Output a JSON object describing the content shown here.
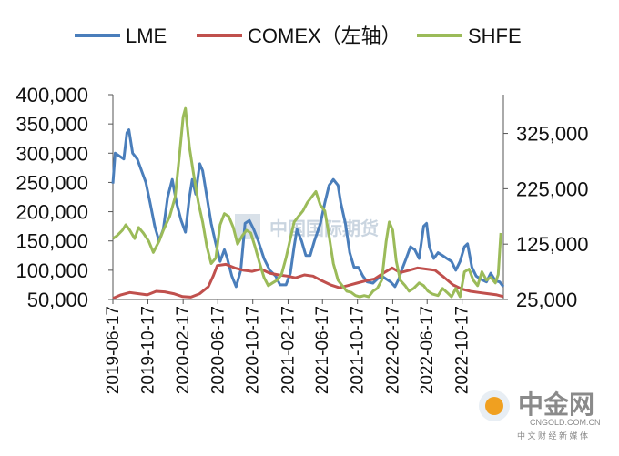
{
  "chart_data": {
    "type": "line",
    "title": "",
    "xlabel": "",
    "ylabel": "",
    "legend_position": "top",
    "grid": false,
    "left_axis": {
      "ticks": [
        50000,
        100000,
        150000,
        200000,
        250000,
        300000,
        350000,
        400000
      ],
      "tick_labels": [
        "50,000",
        "100,000",
        "150,000",
        "200,000",
        "250,000",
        "300,000",
        "350,000",
        "400,000"
      ],
      "ylim": [
        50000,
        400000
      ]
    },
    "right_axis": {
      "ticks": [
        25000,
        125000,
        225000,
        325000
      ],
      "tick_labels": [
        "25,000",
        "125,000",
        "225,000",
        "325,000"
      ],
      "ylim": [
        25000,
        395000
      ]
    },
    "x_tick_labels": [
      "2019-06-17",
      "2019-10-17",
      "2020-02-17",
      "2020-06-17",
      "2020-10-17",
      "2021-02-17",
      "2021-06-17",
      "2021-10-17",
      "2022-02-17",
      "2022-06-17",
      "2022-10-17"
    ],
    "x_range": [
      "2019-06-17",
      "2023-03-10"
    ],
    "series": [
      {
        "name": "LME",
        "axis": "left",
        "color": "#4a7ebb",
        "points": [
          [
            "2019-06-17",
            248000
          ],
          [
            "2019-06-25",
            300000
          ],
          [
            "2019-07-10",
            295000
          ],
          [
            "2019-07-25",
            290000
          ],
          [
            "2019-08-05",
            335000
          ],
          [
            "2019-08-12",
            340000
          ],
          [
            "2019-08-25",
            300000
          ],
          [
            "2019-09-10",
            290000
          ],
          [
            "2019-09-25",
            270000
          ],
          [
            "2019-10-10",
            250000
          ],
          [
            "2019-10-25",
            215000
          ],
          [
            "2019-11-10",
            175000
          ],
          [
            "2019-11-25",
            150000
          ],
          [
            "2019-12-10",
            170000
          ],
          [
            "2019-12-25",
            225000
          ],
          [
            "2020-01-10",
            255000
          ],
          [
            "2020-01-25",
            215000
          ],
          [
            "2020-02-10",
            185000
          ],
          [
            "2020-02-25",
            165000
          ],
          [
            "2020-03-10",
            225000
          ],
          [
            "2020-03-20",
            255000
          ],
          [
            "2020-04-01",
            230000
          ],
          [
            "2020-04-15",
            282000
          ],
          [
            "2020-04-25",
            270000
          ],
          [
            "2020-05-10",
            225000
          ],
          [
            "2020-05-25",
            180000
          ],
          [
            "2020-06-10",
            145000
          ],
          [
            "2020-06-25",
            115000
          ],
          [
            "2020-07-10",
            135000
          ],
          [
            "2020-07-20",
            120000
          ],
          [
            "2020-08-05",
            90000
          ],
          [
            "2020-08-20",
            72000
          ],
          [
            "2020-09-05",
            100000
          ],
          [
            "2020-09-20",
            180000
          ],
          [
            "2020-10-05",
            185000
          ],
          [
            "2020-10-20",
            170000
          ],
          [
            "2020-11-05",
            150000
          ],
          [
            "2020-11-25",
            120000
          ],
          [
            "2020-12-15",
            100000
          ],
          [
            "2021-01-05",
            90000
          ],
          [
            "2021-01-20",
            75000
          ],
          [
            "2021-02-10",
            75000
          ],
          [
            "2021-02-25",
            95000
          ],
          [
            "2021-03-10",
            140000
          ],
          [
            "2021-03-20",
            170000
          ],
          [
            "2021-04-05",
            150000
          ],
          [
            "2021-04-20",
            125000
          ],
          [
            "2021-05-05",
            125000
          ],
          [
            "2021-05-20",
            150000
          ],
          [
            "2021-06-10",
            180000
          ],
          [
            "2021-06-25",
            215000
          ],
          [
            "2021-07-10",
            245000
          ],
          [
            "2021-07-25",
            255000
          ],
          [
            "2021-08-10",
            245000
          ],
          [
            "2021-08-20",
            215000
          ],
          [
            "2021-09-05",
            180000
          ],
          [
            "2021-09-20",
            130000
          ],
          [
            "2021-10-05",
            105000
          ],
          [
            "2021-10-20",
            105000
          ],
          [
            "2021-11-05",
            90000
          ],
          [
            "2021-11-20",
            80000
          ],
          [
            "2021-12-10",
            78000
          ],
          [
            "2021-12-25",
            85000
          ],
          [
            "2022-01-10",
            90000
          ],
          [
            "2022-01-25",
            85000
          ],
          [
            "2022-02-10",
            80000
          ],
          [
            "2022-02-25",
            72000
          ],
          [
            "2022-03-10",
            85000
          ],
          [
            "2022-03-20",
            100000
          ],
          [
            "2022-04-05",
            120000
          ],
          [
            "2022-04-20",
            140000
          ],
          [
            "2022-05-05",
            135000
          ],
          [
            "2022-05-20",
            120000
          ],
          [
            "2022-06-05",
            175000
          ],
          [
            "2022-06-15",
            180000
          ],
          [
            "2022-06-25",
            140000
          ],
          [
            "2022-07-10",
            120000
          ],
          [
            "2022-07-25",
            130000
          ],
          [
            "2022-08-10",
            125000
          ],
          [
            "2022-08-25",
            120000
          ],
          [
            "2022-09-10",
            115000
          ],
          [
            "2022-09-25",
            100000
          ],
          [
            "2022-10-10",
            115000
          ],
          [
            "2022-10-25",
            140000
          ],
          [
            "2022-11-05",
            145000
          ],
          [
            "2022-11-20",
            105000
          ],
          [
            "2022-12-05",
            90000
          ],
          [
            "2022-12-20",
            85000
          ],
          [
            "2023-01-10",
            80000
          ],
          [
            "2023-01-25",
            95000
          ],
          [
            "2023-02-10",
            82000
          ],
          [
            "2023-02-25",
            80000
          ],
          [
            "2023-03-10",
            72000
          ]
        ]
      },
      {
        "name": "COMEX（左轴）",
        "axis": "left",
        "color": "#c0504d",
        "points": [
          [
            "2019-06-17",
            52000
          ],
          [
            "2019-07-15",
            58000
          ],
          [
            "2019-08-15",
            62000
          ],
          [
            "2019-09-15",
            60000
          ],
          [
            "2019-10-15",
            58000
          ],
          [
            "2019-11-15",
            64000
          ],
          [
            "2019-12-15",
            63000
          ],
          [
            "2020-01-15",
            60000
          ],
          [
            "2020-02-15",
            55000
          ],
          [
            "2020-03-15",
            54000
          ],
          [
            "2020-04-15",
            60000
          ],
          [
            "2020-05-15",
            72000
          ],
          [
            "2020-06-01",
            90000
          ],
          [
            "2020-06-15",
            108000
          ],
          [
            "2020-07-15",
            110000
          ],
          [
            "2020-08-15",
            104000
          ],
          [
            "2020-09-15",
            100000
          ],
          [
            "2020-10-15",
            98000
          ],
          [
            "2020-11-15",
            102000
          ],
          [
            "2020-12-15",
            95000
          ],
          [
            "2021-01-15",
            92000
          ],
          [
            "2021-02-15",
            90000
          ],
          [
            "2021-03-15",
            87000
          ],
          [
            "2021-04-15",
            92000
          ],
          [
            "2021-05-15",
            90000
          ],
          [
            "2021-06-15",
            82000
          ],
          [
            "2021-07-15",
            75000
          ],
          [
            "2021-08-15",
            70000
          ],
          [
            "2021-09-15",
            74000
          ],
          [
            "2021-10-15",
            78000
          ],
          [
            "2021-11-15",
            82000
          ],
          [
            "2021-12-15",
            85000
          ],
          [
            "2022-01-15",
            95000
          ],
          [
            "2022-02-15",
            104000
          ],
          [
            "2022-03-15",
            96000
          ],
          [
            "2022-04-15",
            100000
          ],
          [
            "2022-05-15",
            104000
          ],
          [
            "2022-06-15",
            102000
          ],
          [
            "2022-07-15",
            100000
          ],
          [
            "2022-08-15",
            88000
          ],
          [
            "2022-09-15",
            75000
          ],
          [
            "2022-10-15",
            68000
          ],
          [
            "2022-11-15",
            64000
          ],
          [
            "2022-12-15",
            62000
          ],
          [
            "2023-01-15",
            60000
          ],
          [
            "2023-02-15",
            58000
          ],
          [
            "2023-03-10",
            55000
          ]
        ]
      },
      {
        "name": "SHFE",
        "axis": "right",
        "color": "#9bbb59",
        "points": [
          [
            "2019-06-17",
            135000
          ],
          [
            "2019-07-01",
            140000
          ],
          [
            "2019-07-20",
            150000
          ],
          [
            "2019-08-01",
            160000
          ],
          [
            "2019-08-15",
            150000
          ],
          [
            "2019-09-01",
            135000
          ],
          [
            "2019-09-15",
            155000
          ],
          [
            "2019-10-01",
            145000
          ],
          [
            "2019-10-20",
            130000
          ],
          [
            "2019-11-05",
            110000
          ],
          [
            "2019-11-25",
            130000
          ],
          [
            "2019-12-10",
            150000
          ],
          [
            "2020-01-01",
            175000
          ],
          [
            "2020-01-20",
            210000
          ],
          [
            "2020-02-05",
            290000
          ],
          [
            "2020-02-17",
            355000
          ],
          [
            "2020-02-25",
            370000
          ],
          [
            "2020-03-10",
            300000
          ],
          [
            "2020-03-25",
            250000
          ],
          [
            "2020-04-10",
            200000
          ],
          [
            "2020-04-25",
            165000
          ],
          [
            "2020-05-10",
            120000
          ],
          [
            "2020-05-25",
            90000
          ],
          [
            "2020-06-10",
            100000
          ],
          [
            "2020-06-25",
            160000
          ],
          [
            "2020-07-10",
            180000
          ],
          [
            "2020-07-25",
            175000
          ],
          [
            "2020-08-10",
            155000
          ],
          [
            "2020-08-25",
            125000
          ],
          [
            "2020-09-10",
            140000
          ],
          [
            "2020-09-25",
            150000
          ],
          [
            "2020-10-10",
            145000
          ],
          [
            "2020-10-25",
            120000
          ],
          [
            "2020-11-10",
            90000
          ],
          [
            "2020-11-25",
            65000
          ],
          [
            "2020-12-10",
            50000
          ],
          [
            "2020-12-25",
            55000
          ],
          [
            "2021-01-10",
            60000
          ],
          [
            "2021-01-25",
            70000
          ],
          [
            "2021-02-10",
            100000
          ],
          [
            "2021-02-25",
            135000
          ],
          [
            "2021-03-10",
            165000
          ],
          [
            "2021-03-25",
            175000
          ],
          [
            "2021-04-10",
            185000
          ],
          [
            "2021-04-25",
            200000
          ],
          [
            "2021-05-10",
            210000
          ],
          [
            "2021-05-25",
            220000
          ],
          [
            "2021-06-10",
            195000
          ],
          [
            "2021-06-25",
            185000
          ],
          [
            "2021-07-10",
            140000
          ],
          [
            "2021-07-25",
            90000
          ],
          [
            "2021-08-10",
            60000
          ],
          [
            "2021-08-25",
            50000
          ],
          [
            "2021-09-10",
            40000
          ],
          [
            "2021-09-25",
            38000
          ],
          [
            "2021-10-10",
            32000
          ],
          [
            "2021-10-25",
            30000
          ],
          [
            "2021-11-10",
            32000
          ],
          [
            "2021-11-25",
            30000
          ],
          [
            "2021-12-10",
            40000
          ],
          [
            "2021-12-25",
            45000
          ],
          [
            "2022-01-10",
            60000
          ],
          [
            "2022-01-25",
            130000
          ],
          [
            "2022-02-05",
            165000
          ],
          [
            "2022-02-17",
            150000
          ],
          [
            "2022-03-01",
            95000
          ],
          [
            "2022-03-15",
            60000
          ],
          [
            "2022-04-01",
            50000
          ],
          [
            "2022-04-15",
            40000
          ],
          [
            "2022-05-01",
            45000
          ],
          [
            "2022-05-20",
            55000
          ],
          [
            "2022-06-05",
            50000
          ],
          [
            "2022-06-20",
            40000
          ],
          [
            "2022-07-05",
            35000
          ],
          [
            "2022-07-25",
            32000
          ],
          [
            "2022-08-10",
            45000
          ],
          [
            "2022-08-25",
            38000
          ],
          [
            "2022-09-10",
            30000
          ],
          [
            "2022-09-25",
            45000
          ],
          [
            "2022-10-10",
            30000
          ],
          [
            "2022-10-25",
            75000
          ],
          [
            "2022-11-10",
            80000
          ],
          [
            "2022-11-25",
            60000
          ],
          [
            "2022-12-10",
            50000
          ],
          [
            "2022-12-25",
            75000
          ],
          [
            "2023-01-10",
            60000
          ],
          [
            "2023-01-25",
            65000
          ],
          [
            "2023-02-10",
            55000
          ],
          [
            "2023-02-20",
            70000
          ],
          [
            "2023-03-01",
            145000
          ]
        ]
      }
    ]
  },
  "watermark": {
    "text": "中国国际期货"
  },
  "logo": {
    "main": "中金网",
    "url": "CNGOLD.COM.CN",
    "tagline": "中 文 财 经 新 媒 体"
  }
}
